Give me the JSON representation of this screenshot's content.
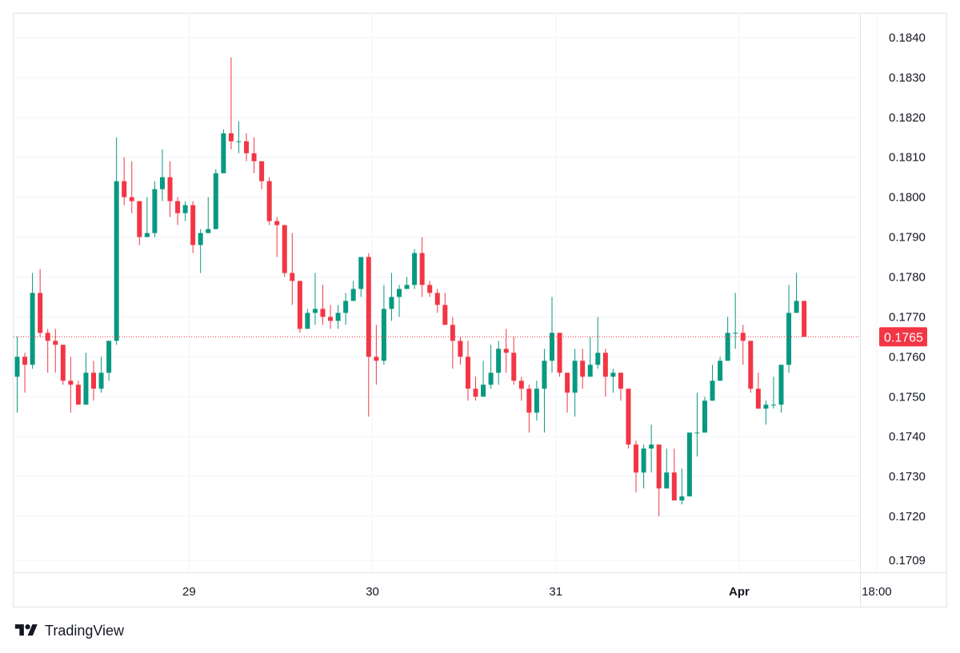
{
  "brand": {
    "name": "TradingView",
    "logo_icon": "tradingview-logo-icon"
  },
  "colors": {
    "up": "#089981",
    "down": "#f23645",
    "grid": "#f0f3fa",
    "axis_text": "#131722",
    "last_price_bg": "#f23645"
  },
  "last_price_label": "0.1765",
  "chart_data": {
    "type": "candlestick",
    "grid": true,
    "ylim": [
      0.1706,
      0.1846
    ],
    "y_ticks": [
      "0.1840",
      "0.1830",
      "0.1820",
      "0.1810",
      "0.1800",
      "0.1790",
      "0.1780",
      "0.1770",
      "0.1760",
      "0.1750",
      "0.1740",
      "0.1730",
      "0.1720",
      "0.1709"
    ],
    "x_ticks": [
      {
        "label": "29",
        "index": 22.5,
        "bold": false
      },
      {
        "label": "30",
        "index": 46.5,
        "bold": false
      },
      {
        "label": "31",
        "index": 70.5,
        "bold": false
      },
      {
        "label": "Apr",
        "index": 94.5,
        "bold": true
      },
      {
        "label": "18:00",
        "index": 112.5,
        "bold": false
      }
    ],
    "last_price": 0.1765,
    "candles": [
      [
        0.1755,
        0.176,
        0.1746,
        0.1765
      ],
      [
        0.176,
        0.1758,
        0.1751,
        0.1761
      ],
      [
        0.1758,
        0.1776,
        0.1757,
        0.1781
      ],
      [
        0.1776,
        0.1766,
        0.1765,
        0.1782
      ],
      [
        0.1766,
        0.1764,
        0.1756,
        0.1767
      ],
      [
        0.1764,
        0.1763,
        0.1756,
        0.1767
      ],
      [
        0.1763,
        0.1754,
        0.1753,
        0.1763
      ],
      [
        0.1754,
        0.1753,
        0.1746,
        0.176
      ],
      [
        0.1753,
        0.1748,
        0.1748,
        0.1754
      ],
      [
        0.1748,
        0.1756,
        0.1748,
        0.1761
      ],
      [
        0.1756,
        0.1752,
        0.1749,
        0.1759
      ],
      [
        0.1752,
        0.1756,
        0.1751,
        0.176
      ],
      [
        0.1756,
        0.1764,
        0.1754,
        0.1764
      ],
      [
        0.1764,
        0.1804,
        0.1763,
        0.1815
      ],
      [
        0.1804,
        0.18,
        0.1798,
        0.181
      ],
      [
        0.18,
        0.1799,
        0.1796,
        0.1809
      ],
      [
        0.1799,
        0.179,
        0.1788,
        0.1799
      ],
      [
        0.179,
        0.1791,
        0.179,
        0.18
      ],
      [
        0.1791,
        0.1802,
        0.179,
        0.1804
      ],
      [
        0.1802,
        0.1805,
        0.1799,
        0.1812
      ],
      [
        0.1805,
        0.1799,
        0.1795,
        0.1809
      ],
      [
        0.1799,
        0.1796,
        0.1793,
        0.18
      ],
      [
        0.1796,
        0.1798,
        0.1794,
        0.1799
      ],
      [
        0.1798,
        0.1788,
        0.1786,
        0.1799
      ],
      [
        0.1788,
        0.1791,
        0.1781,
        0.1792
      ],
      [
        0.1791,
        0.1792,
        0.1791,
        0.18
      ],
      [
        0.1792,
        0.1806,
        0.1792,
        0.1807
      ],
      [
        0.1806,
        0.1816,
        0.1806,
        0.1817
      ],
      [
        0.1816,
        0.1814,
        0.1812,
        0.1835
      ],
      [
        0.1814,
        0.1814,
        0.1811,
        0.1819
      ],
      [
        0.1814,
        0.1811,
        0.1809,
        0.1816
      ],
      [
        0.1811,
        0.1809,
        0.1806,
        0.1815
      ],
      [
        0.1809,
        0.1804,
        0.1802,
        0.1809
      ],
      [
        0.1804,
        0.1794,
        0.1793,
        0.1805
      ],
      [
        0.1794,
        0.1793,
        0.1785,
        0.1795
      ],
      [
        0.1793,
        0.1781,
        0.178,
        0.1793
      ],
      [
        0.1781,
        0.1779,
        0.1773,
        0.1791
      ],
      [
        0.1779,
        0.1767,
        0.1766,
        0.1779
      ],
      [
        0.1767,
        0.1771,
        0.1767,
        0.1772
      ],
      [
        0.1771,
        0.1772,
        0.1768,
        0.1781
      ],
      [
        0.1772,
        0.177,
        0.1768,
        0.1778
      ],
      [
        0.177,
        0.1769,
        0.1767,
        0.1773
      ],
      [
        0.1769,
        0.1771,
        0.1767,
        0.1773
      ],
      [
        0.1771,
        0.1774,
        0.1768,
        0.1776
      ],
      [
        0.1774,
        0.1777,
        0.1774,
        0.1779
      ],
      [
        0.1777,
        0.1785,
        0.1775,
        0.1785
      ],
      [
        0.1785,
        0.176,
        0.1745,
        0.1786
      ],
      [
        0.176,
        0.1759,
        0.1753,
        0.1768
      ],
      [
        0.1759,
        0.1772,
        0.1758,
        0.1778
      ],
      [
        0.1772,
        0.1775,
        0.1769,
        0.1781
      ],
      [
        0.1775,
        0.1777,
        0.177,
        0.1778
      ],
      [
        0.1777,
        0.1778,
        0.1777,
        0.178
      ],
      [
        0.1778,
        0.1786,
        0.1777,
        0.1787
      ],
      [
        0.1786,
        0.1778,
        0.1775,
        0.179
      ],
      [
        0.1778,
        0.1776,
        0.1775,
        0.1779
      ],
      [
        0.1776,
        0.1773,
        0.1771,
        0.1777
      ],
      [
        0.1773,
        0.1768,
        0.1768,
        0.1776
      ],
      [
        0.1768,
        0.1764,
        0.1757,
        0.177
      ],
      [
        0.1764,
        0.176,
        0.1758,
        0.1765
      ],
      [
        0.176,
        0.1752,
        0.1749,
        0.1764
      ],
      [
        0.1752,
        0.175,
        0.1749,
        0.1755
      ],
      [
        0.175,
        0.1753,
        0.1751,
        0.1759
      ],
      [
        0.1753,
        0.1756,
        0.1752,
        0.1763
      ],
      [
        0.1756,
        0.1762,
        0.1753,
        0.1764
      ],
      [
        0.1762,
        0.1761,
        0.1756,
        0.1767
      ],
      [
        0.1761,
        0.1754,
        0.1753,
        0.1765
      ],
      [
        0.1754,
        0.1752,
        0.1749,
        0.1755
      ],
      [
        0.1752,
        0.1746,
        0.1741,
        0.1753
      ],
      [
        0.1746,
        0.1752,
        0.1744,
        0.1754
      ],
      [
        0.1752,
        0.1759,
        0.1741,
        0.1762
      ],
      [
        0.1759,
        0.1766,
        0.1756,
        0.1775
      ],
      [
        0.1766,
        0.1756,
        0.1755,
        0.1766
      ],
      [
        0.1756,
        0.1751,
        0.1746,
        0.1756
      ],
      [
        0.1751,
        0.1759,
        0.1745,
        0.1762
      ],
      [
        0.1759,
        0.1755,
        0.1752,
        0.1762
      ],
      [
        0.1755,
        0.1758,
        0.1755,
        0.1765
      ],
      [
        0.1758,
        0.1761,
        0.1757,
        0.177
      ],
      [
        0.1761,
        0.1755,
        0.175,
        0.1762
      ],
      [
        0.1755,
        0.1756,
        0.1751,
        0.1757
      ],
      [
        0.1756,
        0.1752,
        0.1749,
        0.1756
      ],
      [
        0.1752,
        0.1738,
        0.1737,
        0.1752
      ],
      [
        0.1738,
        0.1731,
        0.1726,
        0.1739
      ],
      [
        0.1731,
        0.1737,
        0.1727,
        0.1738
      ],
      [
        0.1737,
        0.1738,
        0.1731,
        0.1743
      ],
      [
        0.1738,
        0.1727,
        0.172,
        0.1738
      ],
      [
        0.1727,
        0.1731,
        0.1727,
        0.1737
      ],
      [
        0.1731,
        0.1724,
        0.1724,
        0.1737
      ],
      [
        0.1724,
        0.1725,
        0.1723,
        0.1732
      ],
      [
        0.1725,
        0.1741,
        0.1726,
        0.1741
      ],
      [
        0.1741,
        0.1741,
        0.1735,
        0.1751
      ],
      [
        0.1741,
        0.1749,
        0.1741,
        0.175
      ],
      [
        0.1749,
        0.1754,
        0.1749,
        0.1758
      ],
      [
        0.1754,
        0.1759,
        0.1755,
        0.176
      ],
      [
        0.1759,
        0.1766,
        0.1759,
        0.177
      ],
      [
        0.1766,
        0.1766,
        0.1762,
        0.1776
      ],
      [
        0.1766,
        0.1764,
        0.1758,
        0.1768
      ],
      [
        0.1764,
        0.1752,
        0.1751,
        0.1764
      ],
      [
        0.1752,
        0.1747,
        0.1747,
        0.1756
      ],
      [
        0.1747,
        0.1748,
        0.1743,
        0.1749
      ],
      [
        0.1748,
        0.1748,
        0.1747,
        0.1755
      ],
      [
        0.1748,
        0.1758,
        0.1746,
        0.1758
      ],
      [
        0.1758,
        0.1771,
        0.1756,
        0.1778
      ],
      [
        0.1771,
        0.1774,
        0.1771,
        0.1781
      ],
      [
        0.1774,
        0.1765,
        0.1765,
        0.1774
      ]
    ]
  }
}
